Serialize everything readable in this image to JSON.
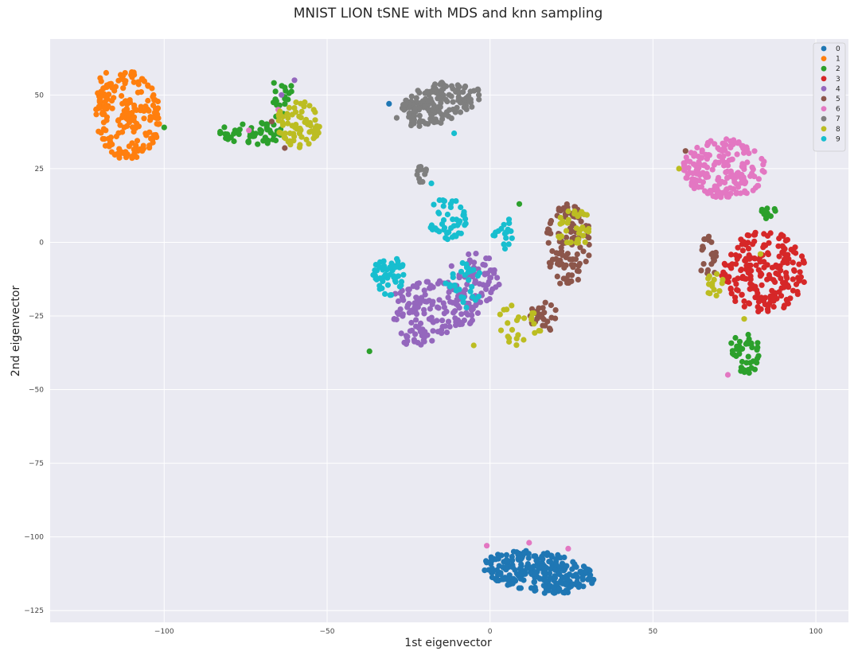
{
  "chart_data": {
    "type": "scatter",
    "title": "MNIST LION tSNE with MDS and knn sampling",
    "xlabel": "1st eigenvector",
    "ylabel": "2nd eigenvector",
    "xlim": [
      -135,
      110
    ],
    "ylim": [
      -129,
      69
    ],
    "xticks": [
      -100,
      -50,
      0,
      50,
      100
    ],
    "yticks": [
      50,
      25,
      0,
      -25,
      -50,
      -75,
      -100,
      -125
    ],
    "xtick_labels": [
      "−100",
      "−50",
      "0",
      "50",
      "100"
    ],
    "ytick_labels": [
      "50",
      "25",
      "0",
      "−25",
      "−50",
      "−75",
      "−100",
      "−125"
    ],
    "grid": true,
    "legend_position": "top-right",
    "series": [
      {
        "name": "0",
        "color": "#1f77b4",
        "clusters": [
          {
            "cx": 15,
            "cy": -112,
            "rx": 17,
            "ry": 7,
            "n": 260,
            "tilt": -0.12
          }
        ],
        "points": [
          [
            -31,
            47
          ]
        ]
      },
      {
        "name": "1",
        "color": "#ff7f0e",
        "clusters": [
          {
            "cx": -111,
            "cy": 43,
            "rx": 10,
            "ry": 15,
            "n": 190,
            "ring": true
          },
          {
            "cx": -118,
            "cy": 50,
            "rx": 3,
            "ry": 8,
            "n": 20
          }
        ],
        "points": []
      },
      {
        "name": "2",
        "color": "#2ca02c",
        "clusters": [
          {
            "cx": -73,
            "cy": 37,
            "rx": 10,
            "ry": 4,
            "n": 55
          },
          {
            "cx": -64,
            "cy": 48,
            "rx": 4,
            "ry": 8,
            "n": 20
          },
          {
            "cx": 78,
            "cy": -38,
            "rx": 5,
            "ry": 7,
            "n": 40
          },
          {
            "cx": 85,
            "cy": 11,
            "rx": 3,
            "ry": 3,
            "n": 12
          }
        ],
        "points": [
          [
            -100,
            39
          ],
          [
            -37,
            -37
          ],
          [
            9,
            13
          ],
          [
            1,
            -10
          ]
        ]
      },
      {
        "name": "3",
        "color": "#d62728",
        "clusters": [
          {
            "cx": 84,
            "cy": -10,
            "rx": 13,
            "ry": 14,
            "n": 200
          }
        ],
        "points": []
      },
      {
        "name": "4",
        "color": "#9467bd",
        "clusters": [
          {
            "cx": -17,
            "cy": -22,
            "rx": 14,
            "ry": 9,
            "n": 130
          },
          {
            "cx": -5,
            "cy": -12,
            "rx": 8,
            "ry": 10,
            "n": 60
          },
          {
            "cx": -23,
            "cy": -32,
            "rx": 6,
            "ry": 3,
            "n": 25
          }
        ],
        "points": [
          [
            -60,
            55
          ],
          [
            -64,
            50
          ]
        ]
      },
      {
        "name": "5",
        "color": "#8c564b",
        "clusters": [
          {
            "cx": 24,
            "cy": -1,
            "rx": 7,
            "ry": 14,
            "n": 110
          },
          {
            "cx": 17,
            "cy": -25,
            "rx": 5,
            "ry": 5,
            "n": 25
          },
          {
            "cx": 67,
            "cy": -5,
            "rx": 3,
            "ry": 7,
            "n": 22
          }
        ],
        "points": [
          [
            60,
            31
          ],
          [
            -67,
            41
          ],
          [
            -63,
            32
          ]
        ]
      },
      {
        "name": "6",
        "color": "#e377c2",
        "clusters": [
          {
            "cx": 72,
            "cy": 25,
            "rx": 13,
            "ry": 10,
            "n": 190
          }
        ],
        "points": [
          [
            73,
            -45
          ],
          [
            -74,
            38
          ],
          [
            12,
            -102
          ],
          [
            24,
            -104
          ],
          [
            -1,
            -103
          ],
          [
            -65,
            45
          ]
        ]
      },
      {
        "name": "7",
        "color": "#7f7f7f",
        "clusters": [
          {
            "cx": -16,
            "cy": 47,
            "rx": 13,
            "ry": 7,
            "n": 160,
            "tilt": 0.25
          },
          {
            "cx": -21,
            "cy": 23,
            "rx": 2,
            "ry": 3,
            "n": 14
          }
        ],
        "points": []
      },
      {
        "name": "8",
        "color": "#bcbd22",
        "clusters": [
          {
            "cx": -59,
            "cy": 40,
            "rx": 7,
            "ry": 8,
            "n": 70
          },
          {
            "cx": 26,
            "cy": 5,
            "rx": 6,
            "ry": 6,
            "n": 35
          },
          {
            "cx": 9,
            "cy": -28,
            "rx": 7,
            "ry": 7,
            "n": 25
          },
          {
            "cx": 69,
            "cy": -15,
            "rx": 3,
            "ry": 5,
            "n": 14
          }
        ],
        "points": [
          [
            -5,
            -35
          ],
          [
            78,
            -26
          ],
          [
            58,
            25
          ],
          [
            83,
            -4
          ]
        ]
      },
      {
        "name": "9",
        "color": "#17becf",
        "clusters": [
          {
            "cx": -31,
            "cy": -11,
            "rx": 5,
            "ry": 7,
            "n": 55
          },
          {
            "cx": -13,
            "cy": 8,
            "rx": 6,
            "ry": 7,
            "n": 45
          },
          {
            "cx": 4,
            "cy": 3,
            "rx": 3,
            "ry": 6,
            "n": 18
          },
          {
            "cx": -8,
            "cy": -15,
            "rx": 6,
            "ry": 8,
            "n": 30
          }
        ],
        "points": [
          [
            -18,
            20
          ],
          [
            -11,
            37
          ],
          [
            -14,
            14
          ]
        ]
      }
    ]
  }
}
